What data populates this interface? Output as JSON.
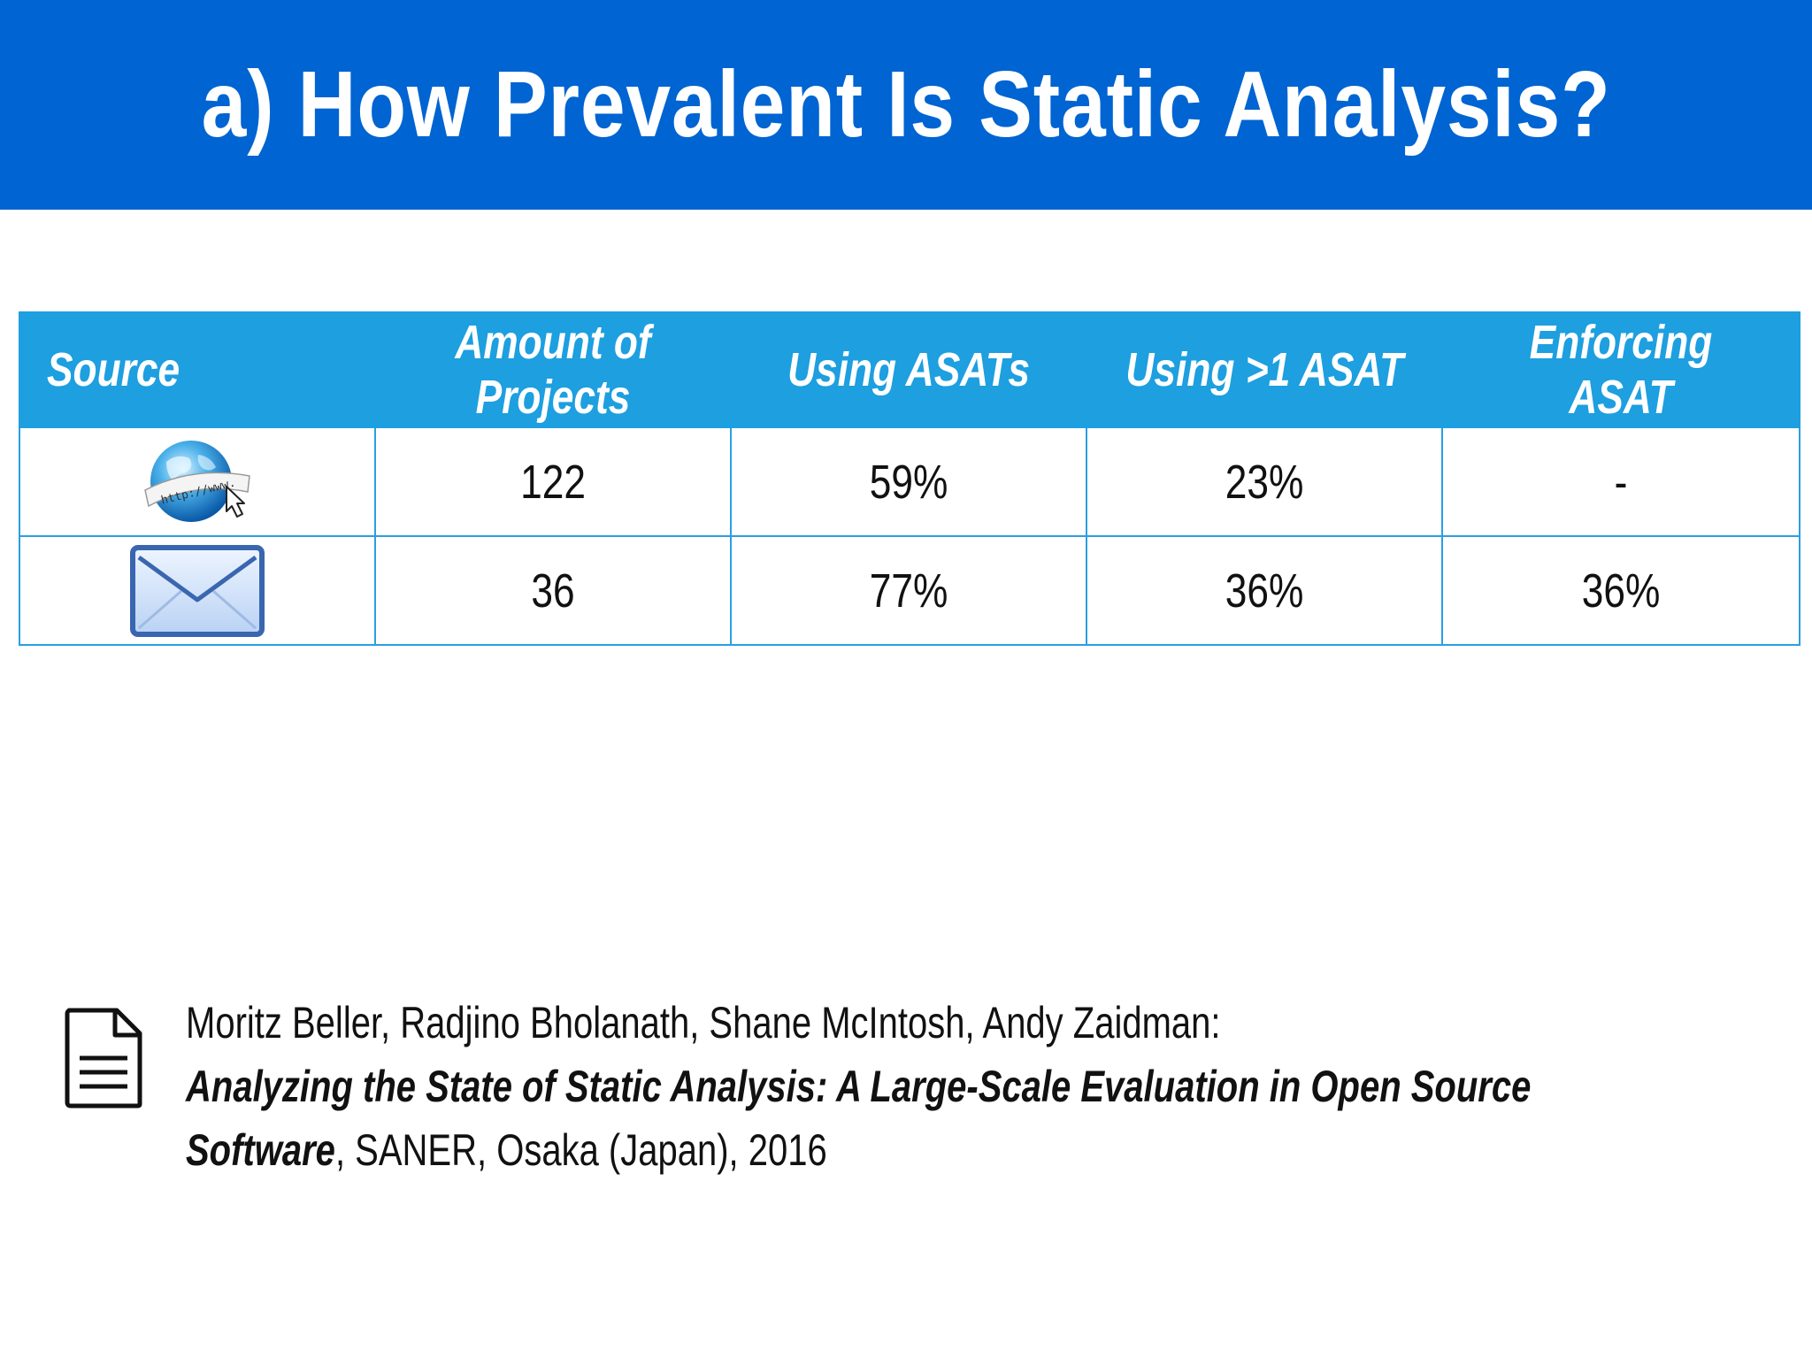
{
  "slide": {
    "title": "a) How Prevalent Is Static Analysis?"
  },
  "table": {
    "headers": [
      "Source",
      "Amount of Projects",
      "Using ASATs",
      "Using >1 ASAT",
      "Enforcing ASAT"
    ],
    "rows": [
      {
        "source_icon": "globe-www-icon",
        "amount": "122",
        "using_asats": "59%",
        "using_more_than_one": "23%",
        "enforcing": "-"
      },
      {
        "source_icon": "envelope-mail-icon",
        "amount": "36",
        "using_asats": "77%",
        "using_more_than_one": "36%",
        "enforcing": "36%"
      }
    ],
    "globe_label": "http://www."
  },
  "citation": {
    "icon": "document-icon",
    "authors": "Moritz Beller, Radjino Bholanath, Shane McIntosh, Andy Zaidman:",
    "title_part1": "Analyzing the State of Static Analysis: A Large-Scale Evaluation in Open Source",
    "title_part2": "Software",
    "venue": ", SANER, Osaka (Japan), 2016"
  },
  "colors": {
    "title_bar": "#0064d2",
    "table_header": "#1d9fe0",
    "table_border": "#2b9ee2"
  }
}
